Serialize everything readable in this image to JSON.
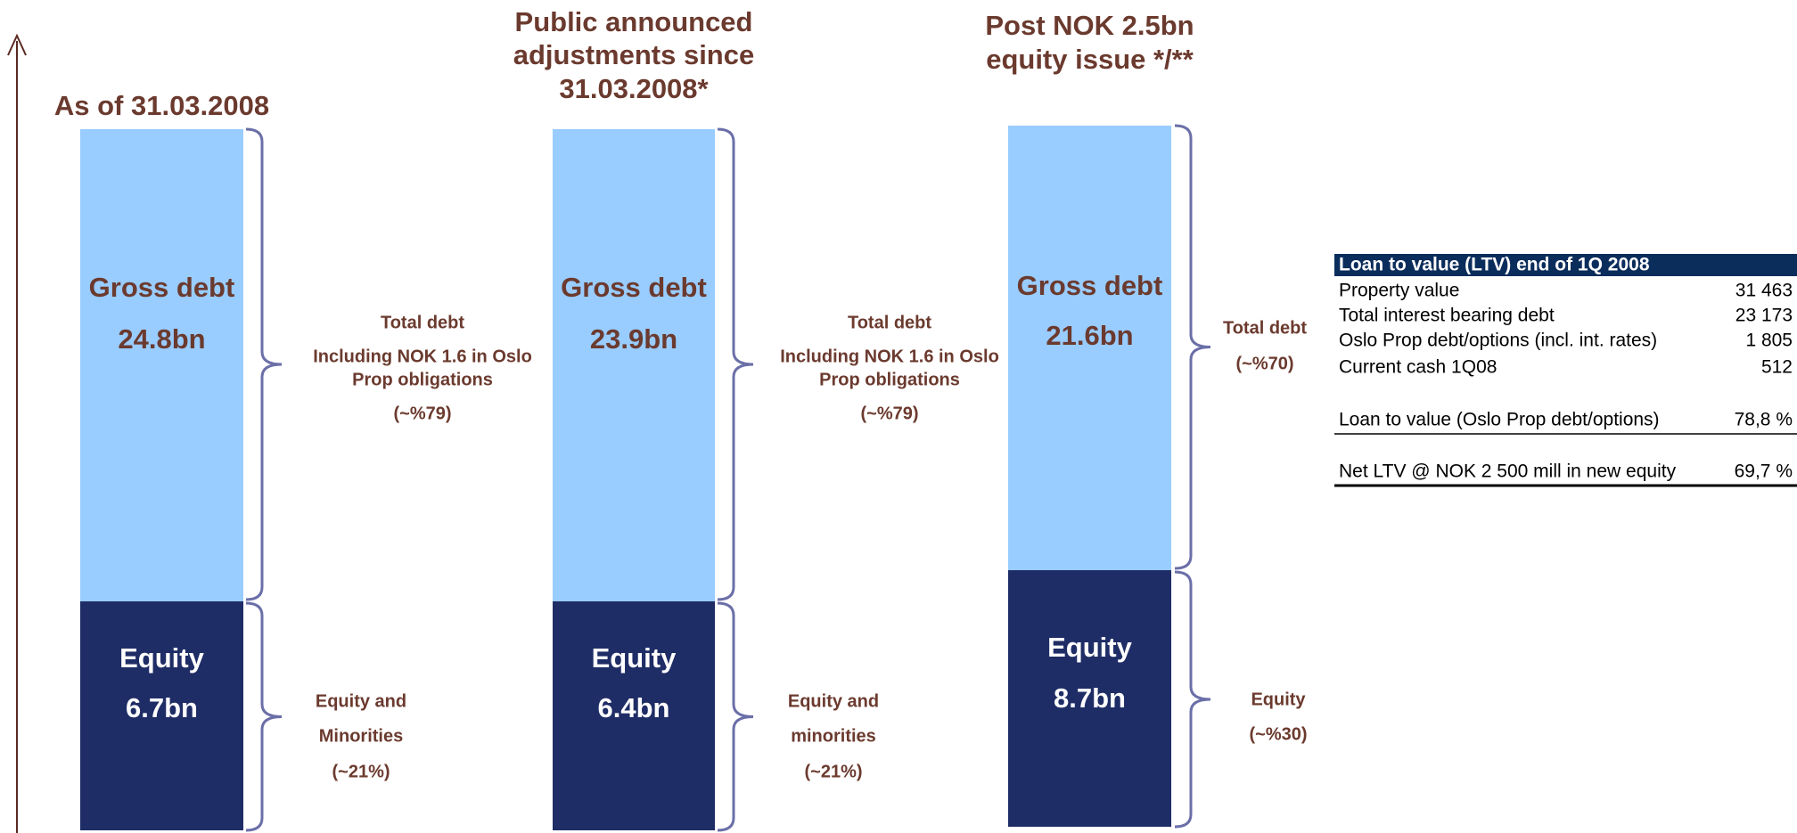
{
  "columns": [
    {
      "title": [
        "As of 31.03.2008"
      ],
      "debt": {
        "label": "Gross debt",
        "amount": "24.8bn"
      },
      "equity": {
        "label": "Equity",
        "amount": "6.7bn"
      },
      "debt_note": [
        "Total debt",
        "Including NOK 1.6 in Oslo",
        "Prop obligations",
        "(~%79)"
      ],
      "equity_note": [
        "Equity and",
        "Minorities",
        "(~21%)"
      ]
    },
    {
      "title": [
        "Public announced",
        "adjustments since",
        "31.03.2008*"
      ],
      "debt": {
        "label": "Gross debt",
        "amount": "23.9bn"
      },
      "equity": {
        "label": "Equity",
        "amount": "6.4bn"
      },
      "debt_note": [
        "Total debt",
        "Including NOK 1.6 in Oslo",
        "Prop obligations",
        "(~%79)"
      ],
      "equity_note": [
        "Equity and",
        "minorities",
        "(~21%)"
      ]
    },
    {
      "title": [
        "Post NOK 2.5bn",
        "equity issue */**"
      ],
      "debt": {
        "label": "Gross debt",
        "amount": "21.6bn"
      },
      "equity": {
        "label": "Equity",
        "amount": "8.7bn"
      },
      "debt_note": [
        "Total debt",
        "(~%70)"
      ],
      "equity_note": [
        "Equity",
        "(~%30)"
      ]
    }
  ],
  "table": {
    "header": "Loan to value (LTV) end of 1Q 2008",
    "rows": [
      [
        "Property value",
        "31 463"
      ],
      [
        "Total interest bearing debt",
        "23 173"
      ],
      [
        "Oslo Prop debt/options (incl. int. rates)",
        "1 805"
      ],
      [
        "Current cash 1Q08",
        "512"
      ],
      [
        "Loan to value (Oslo Prop debt/options)",
        "78,8 %"
      ],
      [
        "Net LTV @ NOK 2 500 mill in new equity",
        "69,7 %"
      ]
    ]
  }
}
